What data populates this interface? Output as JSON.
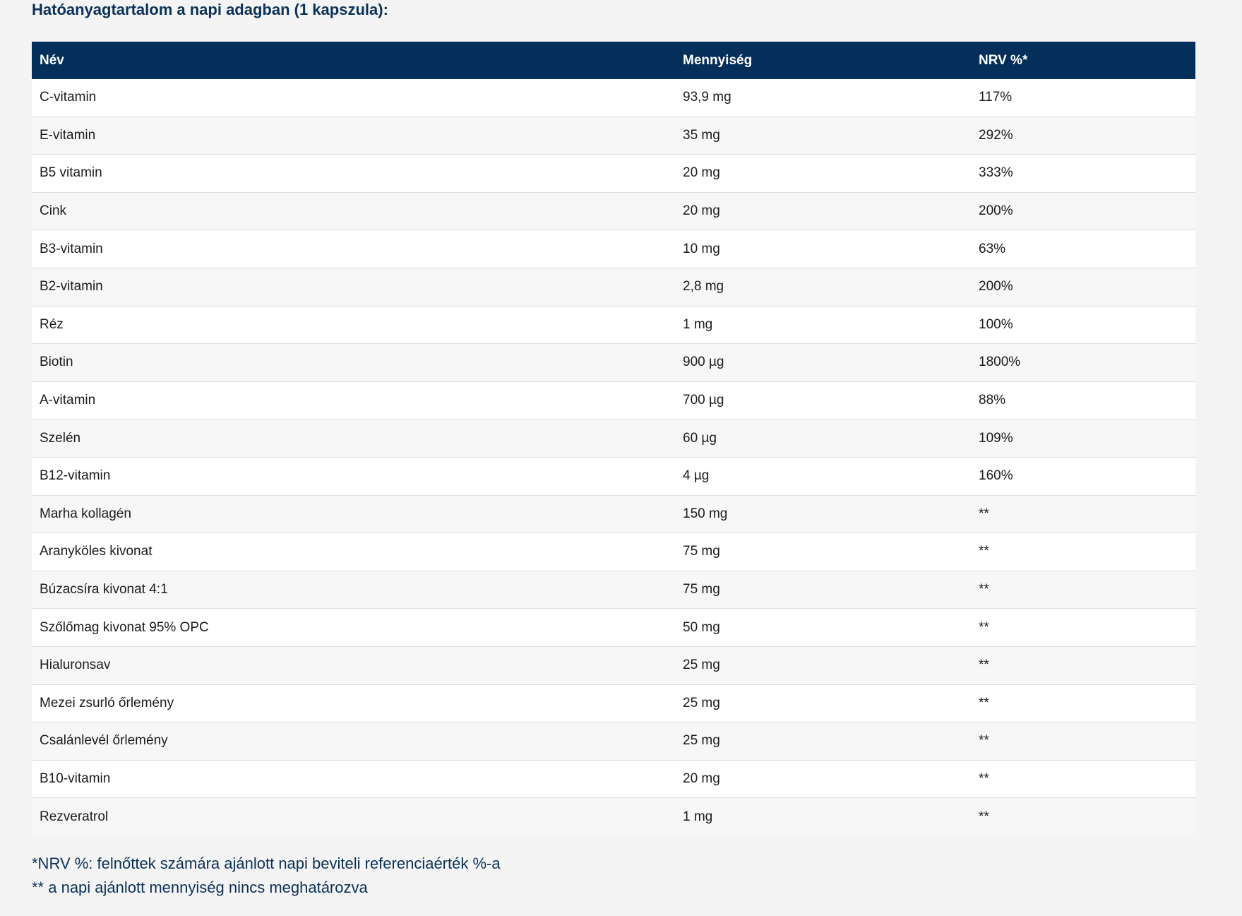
{
  "heading": "Hatóanyagtartalom a napi adagban (1 kapszula):",
  "table": {
    "columns": [
      "Név",
      "Mennyiség",
      "NRV %*"
    ],
    "rows": [
      {
        "name": "C-vitamin",
        "amount": "93,9 mg",
        "nrv": "117%"
      },
      {
        "name": "E-vitamin",
        "amount": "35 mg",
        "nrv": "292%"
      },
      {
        "name": "B5 vitamin",
        "amount": "20 mg",
        "nrv": "333%"
      },
      {
        "name": "Cink",
        "amount": "20 mg",
        "nrv": "200%"
      },
      {
        "name": "B3-vitamin",
        "amount": "10 mg",
        "nrv": "63%"
      },
      {
        "name": "B2-vitamin",
        "amount": "2,8 mg",
        "nrv": "200%"
      },
      {
        "name": "Réz",
        "amount": "1 mg",
        "nrv": "100%"
      },
      {
        "name": "Biotin",
        "amount": "900 µg",
        "nrv": "1800%"
      },
      {
        "name": "A-vitamin",
        "amount": "700 µg",
        "nrv": "88%"
      },
      {
        "name": "Szelén",
        "amount": "60 µg",
        "nrv": "109%"
      },
      {
        "name": "B12-vitamin",
        "amount": "4 µg",
        "nrv": "160%"
      },
      {
        "name": "Marha kollagén",
        "amount": "150 mg",
        "nrv": "**"
      },
      {
        "name": "Aranyköles kivonat",
        "amount": "75 mg",
        "nrv": "**"
      },
      {
        "name": "Búzacsíra kivonat 4:1",
        "amount": "75 mg",
        "nrv": "**"
      },
      {
        "name": "Szőlőmag kivonat 95% OPC",
        "amount": "50 mg",
        "nrv": "**"
      },
      {
        "name": "Hialuronsav",
        "amount": "25 mg",
        "nrv": "**"
      },
      {
        "name": "Mezei zsurló őrlemény",
        "amount": "25 mg",
        "nrv": "**"
      },
      {
        "name": "Csalánlevél őrlemény",
        "amount": "25 mg",
        "nrv": "**"
      },
      {
        "name": "B10-vitamin",
        "amount": "20 mg",
        "nrv": "**"
      },
      {
        "name": "Rezveratrol",
        "amount": "1 mg",
        "nrv": "**"
      }
    ]
  },
  "footnotes": [
    "*NRV %: felnőttek számára ajánlott napi beviteli referenciaérték %-a",
    "** a napi ajánlott mennyiség nincs meghatározva"
  ]
}
